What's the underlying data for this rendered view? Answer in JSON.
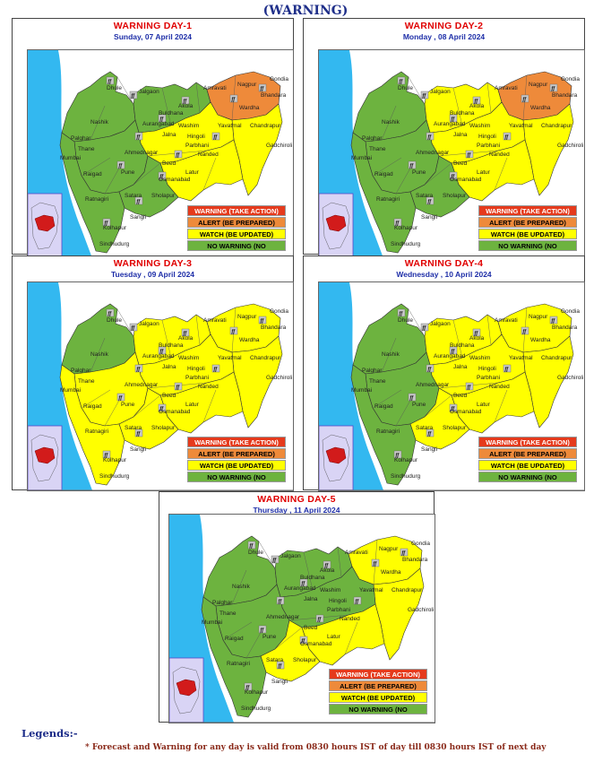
{
  "page_title": "(WARNING)",
  "legend": {
    "warning": "WARNING (TAKE ACTION)",
    "alert": "ALERT (BE PREPARED)",
    "watch": "WATCH (BE UPDATED)",
    "none": "NO WARNING (NO"
  },
  "colors": {
    "warning": "#e53a1c",
    "alert": "#ee8a3a",
    "watch": "#ffff00",
    "none": "#6db33f",
    "sea": "#33b8f0",
    "inset": "#d9d4f5"
  },
  "panels": [
    {
      "title": "WARNING  DAY-1",
      "date": "Sunday,  07 April 2024",
      "levels": {
        "north-west": "none",
        "north": "none",
        "central": "watch",
        "west": "none",
        "south": "none",
        "konkan": "none",
        "north-east": "alert",
        "east": "watch",
        "south-east": "watch"
      }
    },
    {
      "title": "WARNING  DAY-2",
      "date": "Monday ,  08 April 2024",
      "levels": {
        "north-west": "none",
        "north": "watch",
        "central": "watch",
        "west": "none",
        "south": "none",
        "konkan": "none",
        "north-east": "alert",
        "east": "watch",
        "south-east": "watch"
      }
    },
    {
      "title": "WARNING  DAY-3",
      "date": "Tuesday ,  09 April 2024",
      "levels": {
        "north-west": "none",
        "north": "watch",
        "central": "watch",
        "west": "watch",
        "south": "watch",
        "konkan": "watch",
        "north-east": "watch",
        "east": "watch",
        "south-east": "watch"
      }
    },
    {
      "title": "WARNING  DAY-4",
      "date": "Wednesday ,  10 April 2024",
      "levels": {
        "north-west": "none",
        "north": "watch",
        "central": "watch",
        "west": "none",
        "south": "watch",
        "konkan": "none",
        "north-east": "watch",
        "east": "watch",
        "south-east": "watch"
      }
    },
    {
      "title": "WARNING  DAY-5",
      "date": "Thursday ,  11 April 2024",
      "levels": {
        "north-west": "none",
        "north": "none",
        "central": "none",
        "west": "none",
        "south": "watch",
        "konkan": "none",
        "north-east": "watch",
        "east": "watch",
        "south-east": "watch"
      }
    }
  ],
  "cities": [
    "Dhule",
    "Jalgaon",
    "Amravati",
    "Nagpur",
    "Gondia",
    "Bhandara",
    "Nashik",
    "Akola",
    "Wardha",
    "Washim",
    "Yavatmal",
    "Chandrapur",
    "Gadchiroli",
    "Buldhana",
    "Aurangabad",
    "Jalna",
    "Hingoli",
    "Parbhani",
    "Nanded",
    "Palghar",
    "Thane",
    "Mumbai",
    "Raigad",
    "Ahmednagar",
    "Beed",
    "Pune",
    "Latur",
    "Osmanabad",
    "Satara",
    "Sholapur",
    "Ratnagiri",
    "Sangli",
    "Kolhapur",
    "Sindhudurg"
  ],
  "footer": {
    "legends_label": "Legends:-",
    "note": "* Forecast and Warning for any day is valid from 0830 hours IST of day till 0830 hours IST of next day"
  }
}
